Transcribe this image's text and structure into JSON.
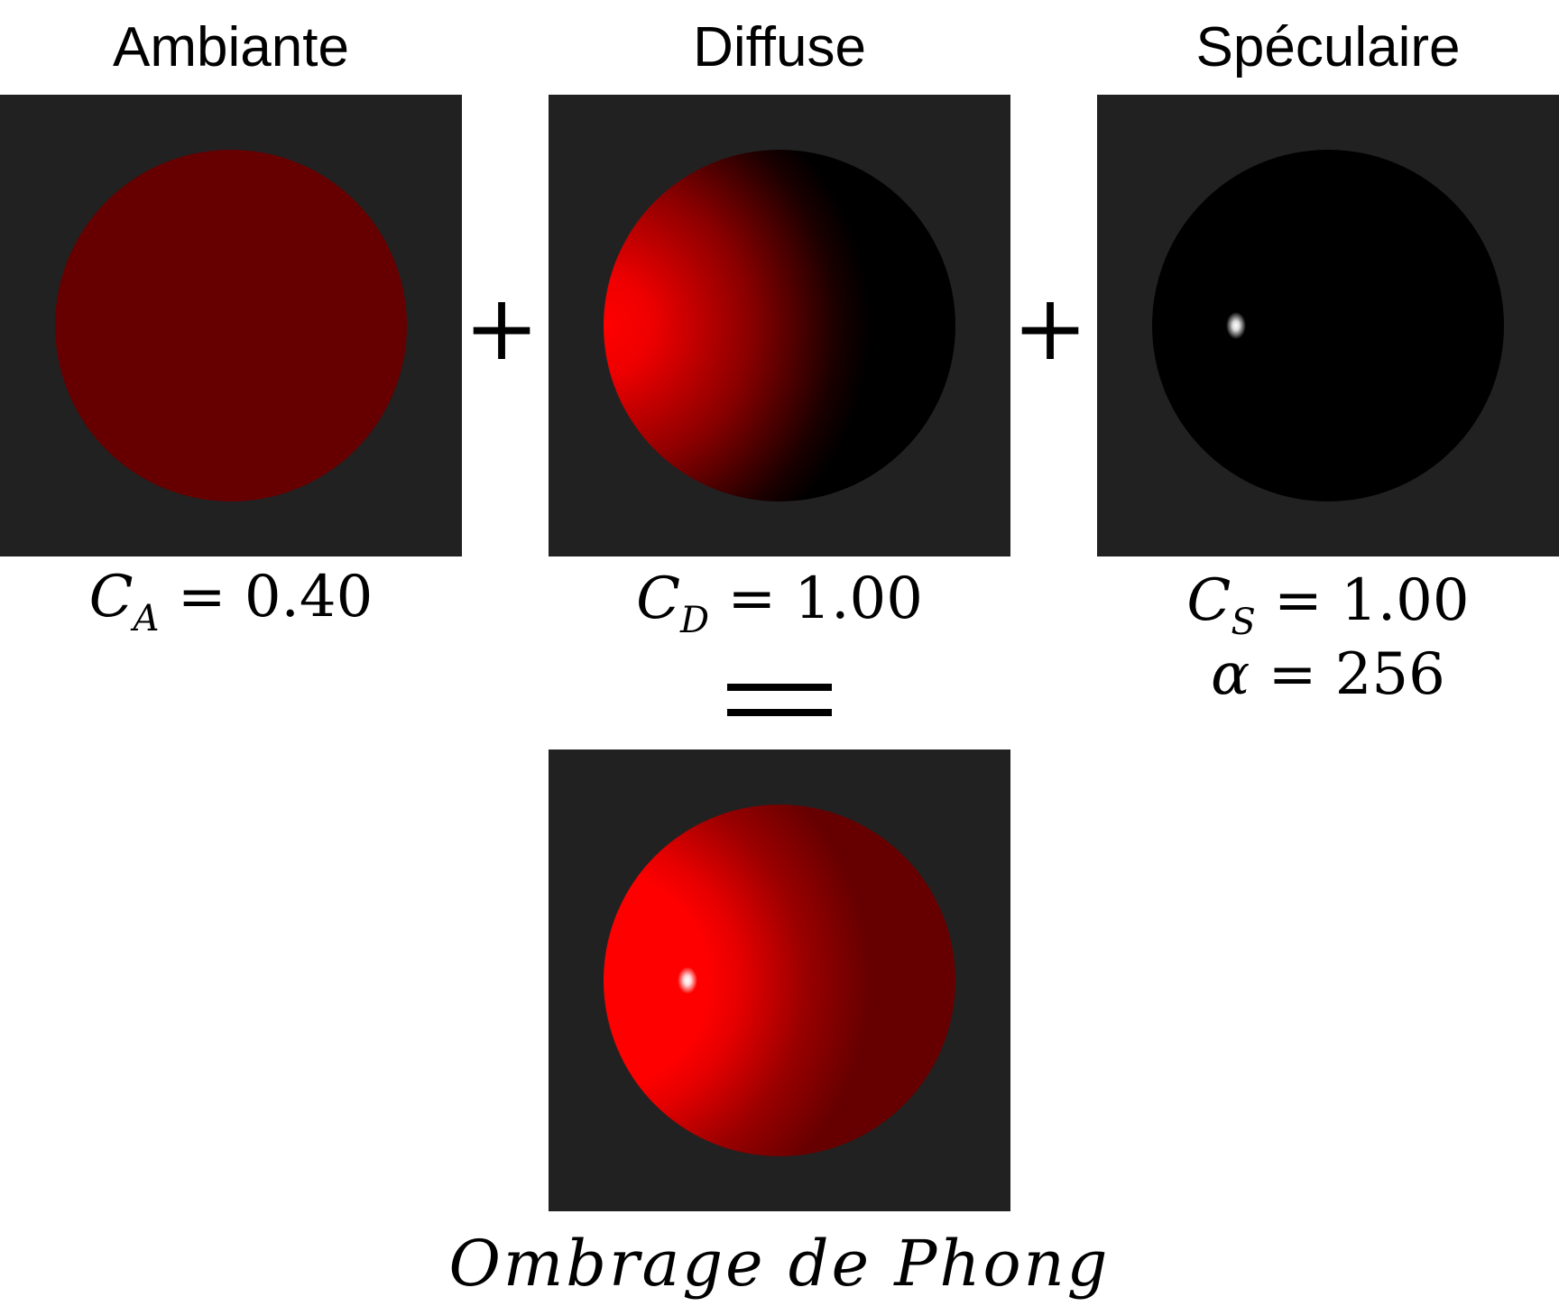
{
  "titles": {
    "ambient": "Ambiante",
    "diffuse": "Diffuse",
    "specular": "Spéculaire"
  },
  "operators": {
    "plus": "+",
    "equals": "="
  },
  "formulas": {
    "ambient": {
      "symbol": "C",
      "sub": "A",
      "rest": "= 0.40"
    },
    "diffuse": {
      "symbol": "C",
      "sub": "D",
      "rest": "= 1.00"
    },
    "specular": {
      "symbol": "C",
      "sub": "S",
      "rest": "= 1.00"
    },
    "alpha": {
      "symbol": "α",
      "rest": "= 256"
    }
  },
  "caption": "Ombrage de Phong",
  "colors": {
    "panel_bg": "#212121",
    "ambient_red": "#660000",
    "diffuse_red": "#ff0000",
    "specular_dark": "#000000",
    "highlight": "#ffffff"
  }
}
